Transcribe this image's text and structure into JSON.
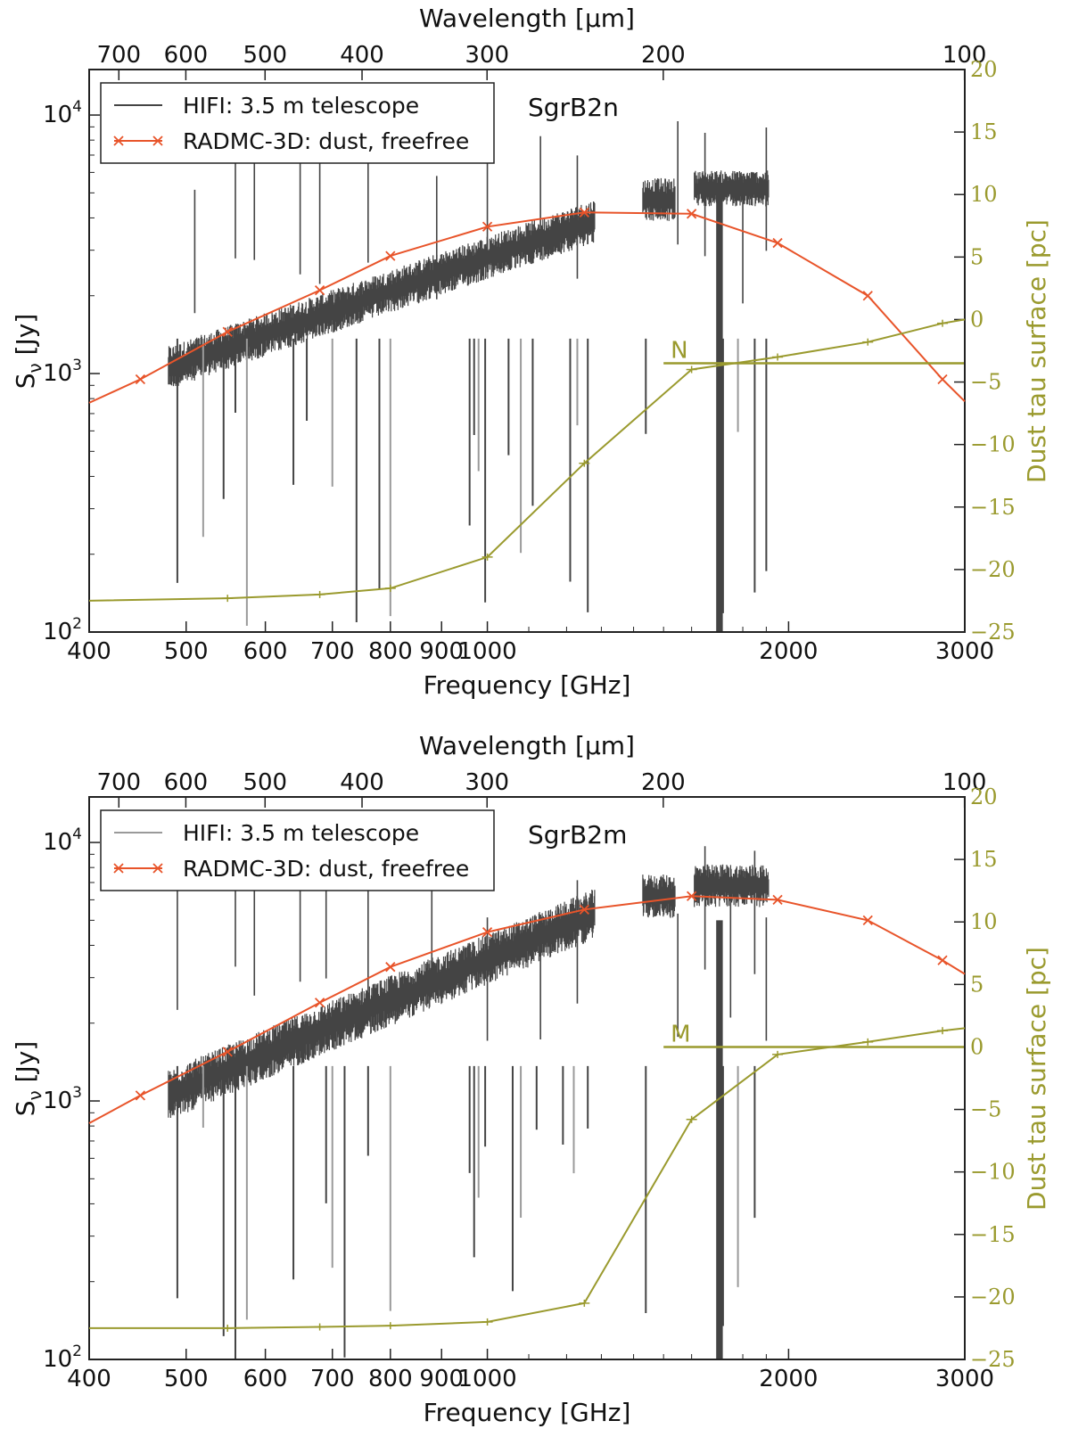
{
  "colors": {
    "model": "#e8542a",
    "tau": "#9a9a2e",
    "obs": "#444444",
    "obs_light": "#9a9a9a",
    "axes": "#222222"
  },
  "chart_data": [
    {
      "type": "line",
      "annotation": "SgrB2n",
      "xlabel": "Frequency [GHz]",
      "xlabel_top": "Wavelength [μm]",
      "ylabel": "S_ν [Jy]",
      "ylabel_right": "Dust tau surface [pc]",
      "x_scale": "log",
      "y_scale": "log",
      "xlim": [
        400,
        3000
      ],
      "ylim": [
        100,
        15000
      ],
      "y2lim": [
        -25,
        20
      ],
      "x_ticks": [
        400,
        500,
        600,
        700,
        800,
        900,
        1000,
        2000,
        3000
      ],
      "x_tick_labels": [
        "400",
        "500",
        "600",
        "700",
        "800",
        "900",
        "1000",
        "2000",
        "3000"
      ],
      "top_ticks": [
        700,
        600,
        500,
        400,
        300,
        200,
        100
      ],
      "y_ticks": [
        100,
        1000,
        10000
      ],
      "y_tick_labels": [
        {
          "base": "10",
          "exp": "2"
        },
        {
          "base": "10",
          "exp": "3"
        },
        {
          "base": "10",
          "exp": "4"
        }
      ],
      "y2_ticks": [
        20,
        15,
        10,
        5,
        0,
        -5,
        -10,
        -15,
        -20,
        -25
      ],
      "y2_tick_labels": [
        "20",
        "15",
        "10",
        "5",
        "0",
        "−5",
        "−10",
        "−15",
        "−20",
        "−25"
      ],
      "legend": {
        "placement": "upper-left",
        "entries": [
          {
            "label": "HIFI: 3.5 m telescope",
            "color": "#444444",
            "marker": "none"
          },
          {
            "label": "RADMC-3D: dust, freefree",
            "color": "#e8542a",
            "marker": "x"
          }
        ]
      },
      "series": [
        {
          "name": "RADMC-3D: dust, freefree",
          "axis": "left",
          "x": [
            400,
            450,
            550,
            680,
            800,
            1000,
            1250,
            1600,
            1950,
            2400,
            2850,
            3000
          ],
          "values": [
            770,
            950,
            1450,
            2100,
            2850,
            3700,
            4200,
            4150,
            3200,
            2000,
            950,
            780
          ]
        },
        {
          "name": "HIFI: 3.5 m telescope",
          "axis": "left",
          "bands": [
            {
              "x_start": 480,
              "x_end": 1280,
              "y_start": 1050,
              "y_end": 3900,
              "spread": 0.06
            },
            {
              "x_start": 1430,
              "x_end": 1540,
              "y_start": 4700,
              "y_end": 4700,
              "spread": 0.06
            },
            {
              "x_start": 1610,
              "x_end": 1910,
              "y_start": 5200,
              "y_end": 5200,
              "spread": 0.05
            }
          ],
          "absorption_x": [
            490,
            520,
            545,
            560,
            575,
            640,
            660,
            700,
            740,
            780,
            800,
            960,
            970,
            980,
            995,
            1050,
            1080,
            1110,
            1210,
            1230,
            1260,
            1440,
            1700,
            1710,
            1720,
            1780,
            1850,
            1900
          ],
          "emission_x": [
            510,
            560,
            585,
            650,
            680,
            760,
            890,
            1000,
            1130,
            1230,
            1550,
            1650,
            1800,
            1900
          ]
        },
        {
          "name": "Dust tau surface",
          "axis": "right",
          "x": [
            400,
            550,
            680,
            800,
            1000,
            1250,
            1600,
            1950,
            2400,
            2850,
            3000
          ],
          "values": [
            -22.5,
            -22.3,
            -22.0,
            -21.5,
            -19.0,
            -11.5,
            -4.0,
            -3.0,
            -1.8,
            -0.3,
            0.0
          ]
        }
      ],
      "surface_marker": {
        "label": "N",
        "x_start": 1500,
        "x_end": 3000,
        "value": -3.5
      }
    },
    {
      "type": "line",
      "annotation": "SgrB2m",
      "xlabel": "Frequency [GHz]",
      "xlabel_top": "Wavelength [μm]",
      "ylabel": "S_ν [Jy]",
      "ylabel_right": "Dust tau surface [pc]",
      "x_scale": "log",
      "y_scale": "log",
      "xlim": [
        400,
        3000
      ],
      "ylim": [
        100,
        15000
      ],
      "y2lim": [
        -25,
        20
      ],
      "x_ticks": [
        400,
        500,
        600,
        700,
        800,
        900,
        1000,
        2000,
        3000
      ],
      "x_tick_labels": [
        "400",
        "500",
        "600",
        "700",
        "800",
        "900",
        "1000",
        "2000",
        "3000"
      ],
      "top_ticks": [
        700,
        600,
        500,
        400,
        300,
        200,
        100
      ],
      "y_ticks": [
        100,
        1000,
        10000
      ],
      "y_tick_labels": [
        {
          "base": "10",
          "exp": "2"
        },
        {
          "base": "10",
          "exp": "3"
        },
        {
          "base": "10",
          "exp": "4"
        }
      ],
      "y2_ticks": [
        20,
        15,
        10,
        5,
        0,
        -5,
        -10,
        -15,
        -20,
        -25
      ],
      "y2_tick_labels": [
        "20",
        "15",
        "10",
        "5",
        "0",
        "−5",
        "−10",
        "−15",
        "−20",
        "−25"
      ],
      "legend": {
        "placement": "upper-left",
        "entries": [
          {
            "label": "HIFI: 3.5 m telescope",
            "color": "#9a9a9a",
            "marker": "none"
          },
          {
            "label": "RADMC-3D: dust, freefree",
            "color": "#e8542a",
            "marker": "x"
          }
        ]
      },
      "series": [
        {
          "name": "RADMC-3D: dust, freefree",
          "axis": "left",
          "x": [
            400,
            450,
            550,
            680,
            800,
            1000,
            1250,
            1600,
            1950,
            2400,
            2850,
            3000
          ],
          "values": [
            820,
            1050,
            1550,
            2400,
            3300,
            4500,
            5500,
            6200,
            6000,
            5000,
            3500,
            3100
          ]
        },
        {
          "name": "HIFI: 3.5 m telescope",
          "axis": "left",
          "bands": [
            {
              "x_start": 480,
              "x_end": 1280,
              "y_start": 1050,
              "y_end": 5300,
              "spread": 0.07
            },
            {
              "x_start": 1430,
              "x_end": 1540,
              "y_start": 6200,
              "y_end": 6200,
              "spread": 0.06
            },
            {
              "x_start": 1610,
              "x_end": 1910,
              "y_start": 6800,
              "y_end": 6800,
              "spread": 0.06
            }
          ],
          "absorption_x": [
            490,
            520,
            545,
            560,
            575,
            640,
            690,
            700,
            720,
            760,
            800,
            960,
            970,
            980,
            995,
            1060,
            1080,
            1120,
            1190,
            1220,
            1260,
            1440,
            1700,
            1710,
            1720,
            1780,
            1850
          ],
          "emission_x": [
            490,
            560,
            585,
            650,
            690,
            760,
            880,
            1000,
            1130,
            1230,
            1550,
            1650,
            1750,
            1850,
            1900
          ]
        },
        {
          "name": "Dust tau surface",
          "axis": "right",
          "x": [
            400,
            550,
            680,
            800,
            1000,
            1250,
            1600,
            1950,
            2400,
            2850,
            3000
          ],
          "values": [
            -22.5,
            -22.5,
            -22.4,
            -22.3,
            -22.0,
            -20.5,
            -5.8,
            -0.6,
            0.4,
            1.3,
            1.5
          ]
        }
      ],
      "surface_marker": {
        "label": "M",
        "x_start": 1500,
        "x_end": 3000,
        "value": 0.0
      }
    }
  ]
}
